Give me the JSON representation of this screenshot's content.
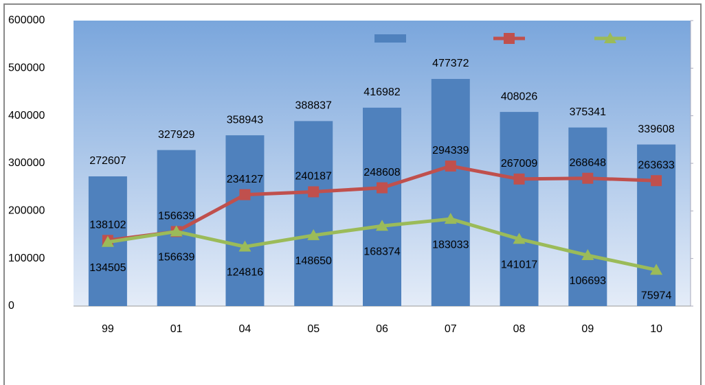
{
  "chart_data": {
    "type": "combo",
    "categories": [
      "99",
      "01",
      "04",
      "05",
      "06",
      "07",
      "08",
      "09",
      "10"
    ],
    "series": [
      {
        "type": "bar",
        "color": "#4f81bd",
        "values": [
          272607,
          327929,
          358943,
          388837,
          416982,
          477372,
          408026,
          375341,
          339608
        ]
      },
      {
        "type": "line",
        "marker": "square",
        "color": "#c0504d",
        "values": [
          138102,
          156639,
          234127,
          240187,
          248608,
          294339,
          267009,
          268648,
          263633
        ]
      },
      {
        "type": "line",
        "marker": "triangle",
        "color": "#9bbb59",
        "values": [
          134505,
          156639,
          124816,
          148650,
          168374,
          183033,
          141017,
          106693,
          75974
        ]
      }
    ],
    "ylim": [
      0,
      600000
    ],
    "yticks": [
      0,
      100000,
      200000,
      300000,
      400000,
      500000,
      600000
    ],
    "grid": false,
    "legend": "top-right"
  }
}
